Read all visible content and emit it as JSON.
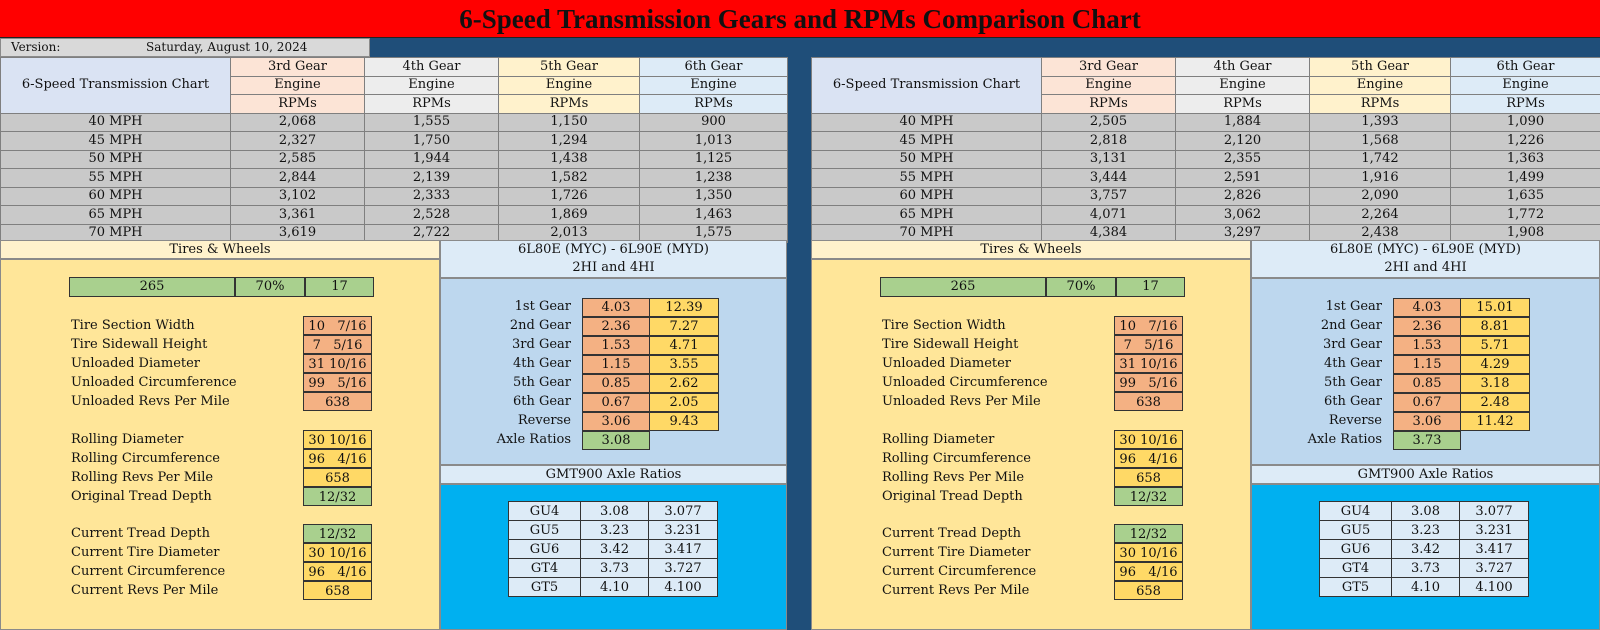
{
  "title": "6-Speed Transmission Gears and RPMs Comparison Chart",
  "version_label": "Version:",
  "version_date": "Saturday, August 10, 2024",
  "charts": [
    {
      "table_label": "6-Speed Transmission Chart",
      "gear_headers": [
        "3rd Gear",
        "4th Gear",
        "5th Gear",
        "6th Gear"
      ],
      "engine_label": "Engine",
      "rpms_label": "RPMs",
      "rows": [
        {
          "speed": "40 MPH",
          "vals": [
            "2,068",
            "1,555",
            "1,150",
            "900"
          ]
        },
        {
          "speed": "45 MPH",
          "vals": [
            "2,327",
            "1,750",
            "1,294",
            "1,013"
          ]
        },
        {
          "speed": "50 MPH",
          "vals": [
            "2,585",
            "1,944",
            "1,438",
            "1,125"
          ]
        },
        {
          "speed": "55 MPH",
          "vals": [
            "2,844",
            "2,139",
            "1,582",
            "1,238"
          ]
        },
        {
          "speed": "60 MPH",
          "vals": [
            "3,102",
            "2,333",
            "1,726",
            "1,350"
          ]
        },
        {
          "speed": "65 MPH",
          "vals": [
            "3,361",
            "2,528",
            "1,869",
            "1,463"
          ]
        },
        {
          "speed": "70 MPH",
          "vals": [
            "3,619",
            "2,722",
            "2,013",
            "1,575"
          ]
        }
      ],
      "tires": {
        "header": "Tires & Wheels",
        "size": [
          "265",
          "70%",
          "17"
        ],
        "group1": [
          {
            "label": "Tire Section Width",
            "value": "10   7/16"
          },
          {
            "label": "Tire Sidewall Height",
            "value": "7   5/16"
          },
          {
            "label": "Unloaded Diameter",
            "value": "31 10/16"
          },
          {
            "label": "Unloaded Circumference",
            "value": "99   5/16"
          },
          {
            "label": "Unloaded Revs Per Mile",
            "value": "638"
          }
        ],
        "group2": [
          {
            "label": "Rolling Diameter",
            "value": "30 10/16"
          },
          {
            "label": "Rolling Circumference",
            "value": "96   4/16"
          },
          {
            "label": "Rolling Revs Per Mile",
            "value": "658"
          },
          {
            "label": "Original Tread Depth",
            "value": "12/32"
          }
        ],
        "group3": [
          {
            "label": "Current Tread Depth",
            "value": "12/32"
          },
          {
            "label": "Current Tire Diameter",
            "value": "30 10/16"
          },
          {
            "label": "Current Circumference",
            "value": "96   4/16"
          },
          {
            "label": "Current Revs Per Mile",
            "value": "658"
          }
        ]
      },
      "gears": {
        "header1": "6L80E (MYC) - 6L90E (MYD)",
        "header2": "2HI and 4HI",
        "rows": [
          {
            "label": "1st Gear",
            "ratio": "4.03",
            "final": "12.39"
          },
          {
            "label": "2nd Gear",
            "ratio": "2.36",
            "final": "7.27"
          },
          {
            "label": "3rd Gear",
            "ratio": "1.53",
            "final": "4.71"
          },
          {
            "label": "4th Gear",
            "ratio": "1.15",
            "final": "3.55"
          },
          {
            "label": "5th Gear",
            "ratio": "0.85",
            "final": "2.62"
          },
          {
            "label": "6th Gear",
            "ratio": "0.67",
            "final": "2.05"
          },
          {
            "label": "Reverse",
            "ratio": "3.06",
            "final": "9.43"
          }
        ],
        "axle_label": "Axle Ratios",
        "axle_value": "3.08"
      },
      "axle": {
        "header": "GMT900 Axle Ratios",
        "rows": [
          [
            "GU4",
            "3.08",
            "3.077"
          ],
          [
            "GU5",
            "3.23",
            "3.231"
          ],
          [
            "GU6",
            "3.42",
            "3.417"
          ],
          [
            "GT4",
            "3.73",
            "3.727"
          ],
          [
            "GT5",
            "4.10",
            "4.100"
          ]
        ]
      }
    },
    {
      "table_label": "6-Speed Transmission Chart",
      "gear_headers": [
        "3rd Gear",
        "4th Gear",
        "5th Gear",
        "6th Gear"
      ],
      "engine_label": "Engine",
      "rpms_label": "RPMs",
      "rows": [
        {
          "speed": "40 MPH",
          "vals": [
            "2,505",
            "1,884",
            "1,393",
            "1,090"
          ]
        },
        {
          "speed": "45 MPH",
          "vals": [
            "2,818",
            "2,120",
            "1,568",
            "1,226"
          ]
        },
        {
          "speed": "50 MPH",
          "vals": [
            "3,131",
            "2,355",
            "1,742",
            "1,363"
          ]
        },
        {
          "speed": "55 MPH",
          "vals": [
            "3,444",
            "2,591",
            "1,916",
            "1,499"
          ]
        },
        {
          "speed": "60 MPH",
          "vals": [
            "3,757",
            "2,826",
            "2,090",
            "1,635"
          ]
        },
        {
          "speed": "65 MPH",
          "vals": [
            "4,071",
            "3,062",
            "2,264",
            "1,772"
          ]
        },
        {
          "speed": "70 MPH",
          "vals": [
            "4,384",
            "3,297",
            "2,438",
            "1,908"
          ]
        }
      ],
      "tires": {
        "header": "Tires & Wheels",
        "size": [
          "265",
          "70%",
          "17"
        ],
        "group1": [
          {
            "label": "Tire Section Width",
            "value": "10   7/16"
          },
          {
            "label": "Tire Sidewall Height",
            "value": "7   5/16"
          },
          {
            "label": "Unloaded Diameter",
            "value": "31 10/16"
          },
          {
            "label": "Unloaded Circumference",
            "value": "99   5/16"
          },
          {
            "label": "Unloaded Revs Per Mile",
            "value": "638"
          }
        ],
        "group2": [
          {
            "label": "Rolling Diameter",
            "value": "30 10/16"
          },
          {
            "label": "Rolling Circumference",
            "value": "96   4/16"
          },
          {
            "label": "Rolling Revs Per Mile",
            "value": "658"
          },
          {
            "label": "Original Tread Depth",
            "value": "12/32"
          }
        ],
        "group3": [
          {
            "label": "Current Tread Depth",
            "value": "12/32"
          },
          {
            "label": "Current Tire Diameter",
            "value": "30 10/16"
          },
          {
            "label": "Current Circumference",
            "value": "96   4/16"
          },
          {
            "label": "Current Revs Per Mile",
            "value": "658"
          }
        ]
      },
      "gears": {
        "header1": "6L80E (MYC) - 6L90E (MYD)",
        "header2": "2HI and 4HI",
        "rows": [
          {
            "label": "1st Gear",
            "ratio": "4.03",
            "final": "15.01"
          },
          {
            "label": "2nd Gear",
            "ratio": "2.36",
            "final": "8.81"
          },
          {
            "label": "3rd Gear",
            "ratio": "1.53",
            "final": "5.71"
          },
          {
            "label": "4th Gear",
            "ratio": "1.15",
            "final": "4.29"
          },
          {
            "label": "5th Gear",
            "ratio": "0.85",
            "final": "3.18"
          },
          {
            "label": "6th Gear",
            "ratio": "0.67",
            "final": "2.48"
          },
          {
            "label": "Reverse",
            "ratio": "3.06",
            "final": "11.42"
          }
        ],
        "axle_label": "Axle Ratios",
        "axle_value": "3.73"
      },
      "axle": {
        "header": "GMT900 Axle Ratios",
        "rows": [
          [
            "GU4",
            "3.08",
            "3.077"
          ],
          [
            "GU5",
            "3.23",
            "3.231"
          ],
          [
            "GU6",
            "3.42",
            "3.417"
          ],
          [
            "GT4",
            "3.73",
            "3.727"
          ],
          [
            "GT5",
            "4.10",
            "4.100"
          ]
        ]
      }
    }
  ]
}
